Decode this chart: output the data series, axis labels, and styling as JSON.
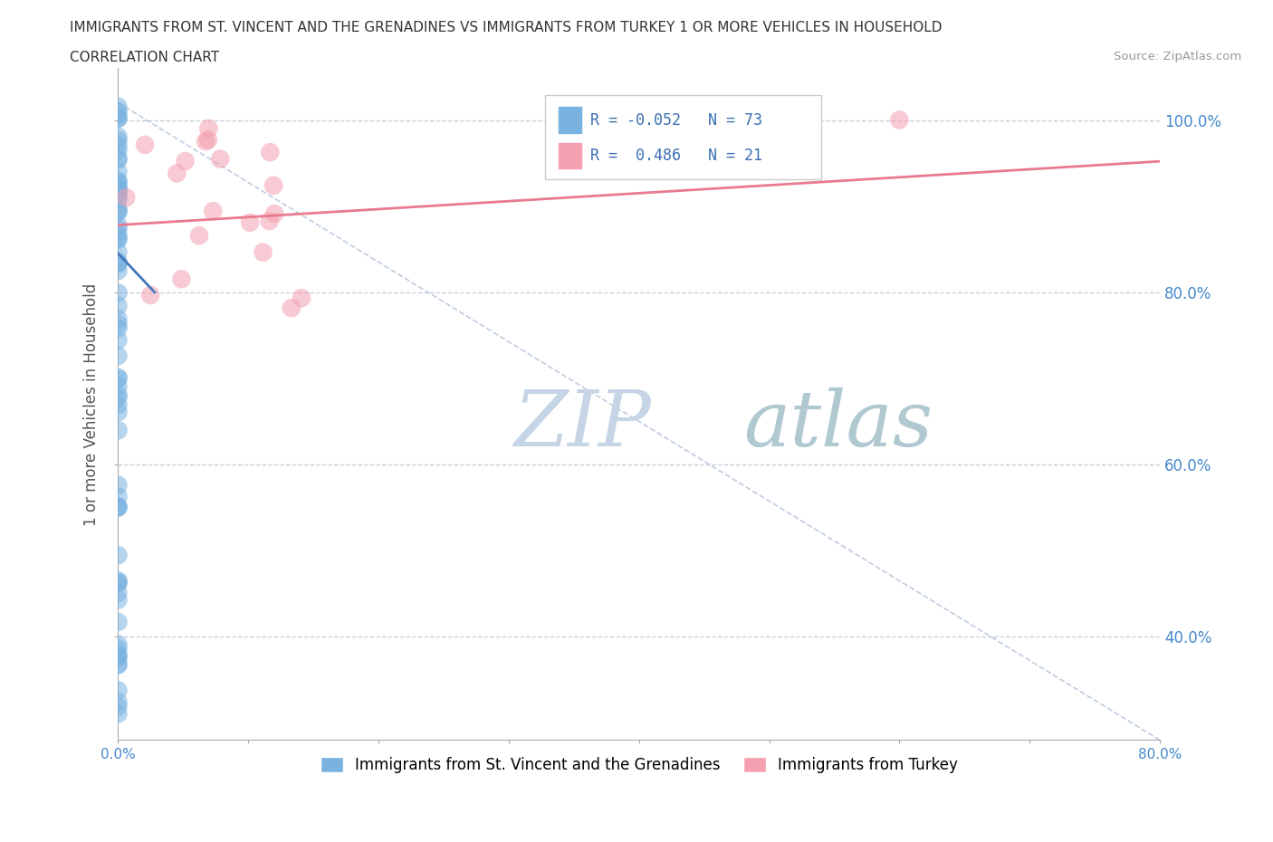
{
  "title_line1": "IMMIGRANTS FROM ST. VINCENT AND THE GRENADINES VS IMMIGRANTS FROM TURKEY 1 OR MORE VEHICLES IN HOUSEHOLD",
  "title_line2": "CORRELATION CHART",
  "source_text": "Source: ZipAtlas.com",
  "ylabel": "1 or more Vehicles in Household",
  "xlim": [
    0.0,
    0.8
  ],
  "ylim": [
    0.28,
    1.06
  ],
  "xticks": [
    0.0,
    0.1,
    0.2,
    0.3,
    0.4,
    0.5,
    0.6,
    0.7,
    0.8
  ],
  "xticklabels": [
    "0.0%",
    "",
    "",
    "",
    "",
    "",
    "",
    "",
    "80.0%"
  ],
  "ytick_positions": [
    0.4,
    0.6,
    0.8,
    1.0
  ],
  "yticklabels_right": [
    "40.0%",
    "60.0%",
    "80.0%",
    "100.0%"
  ],
  "blue_color": "#7ab3e0",
  "pink_color": "#f4a0b0",
  "blue_line_color": "#4477bb",
  "pink_line_color": "#e87a90",
  "diag_line_color": "#b0c0d8",
  "grid_color": "#c0c8d8",
  "watermark_color_zip": "#c8d8e8",
  "watermark_color_atlas": "#b8ccd8",
  "R_blue": -0.052,
  "N_blue": 73,
  "R_pink": 0.486,
  "N_pink": 21,
  "legend_label_blue": "Immigrants from St. Vincent and the Grenadines",
  "legend_label_pink": "Immigrants from Turkey",
  "blue_trend_x0": 0.0,
  "blue_trend_y0": 0.845,
  "blue_trend_x1": 0.028,
  "blue_trend_y1": 0.8,
  "pink_trend_x0": 0.0,
  "pink_trend_y0": 0.878,
  "pink_trend_x1": 0.8,
  "pink_trend_y1": 0.952
}
